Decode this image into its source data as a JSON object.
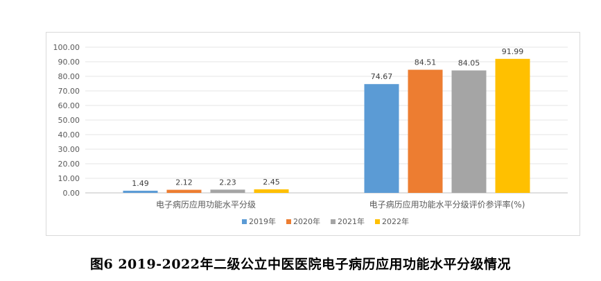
{
  "caption": "图6 2019-2022年二级公立中医医院电子病历应用功能水平分级情况",
  "chart_data": {
    "type": "bar",
    "categories": [
      "电子病历应用功能水平分级",
      "电子病历应用功能水平分级评价参评率(%)"
    ],
    "series": [
      {
        "name": "2019年",
        "color": "#5b9bd5",
        "values": [
          1.49,
          74.67
        ]
      },
      {
        "name": "2020年",
        "color": "#ed7d31",
        "values": [
          2.12,
          84.51
        ]
      },
      {
        "name": "2021年",
        "color": "#a5a5a5",
        "values": [
          2.23,
          84.05
        ]
      },
      {
        "name": "2022年",
        "color": "#ffc000",
        "values": [
          2.45,
          91.99
        ]
      }
    ],
    "y_ticks": [
      "0.00",
      "10.00",
      "20.00",
      "30.00",
      "40.00",
      "50.00",
      "60.00",
      "70.00",
      "80.00",
      "90.00",
      "100.00"
    ],
    "ylim": [
      0,
      100
    ],
    "grid": true,
    "legend_position": "bottom",
    "data_label_format": "2-decimals"
  }
}
